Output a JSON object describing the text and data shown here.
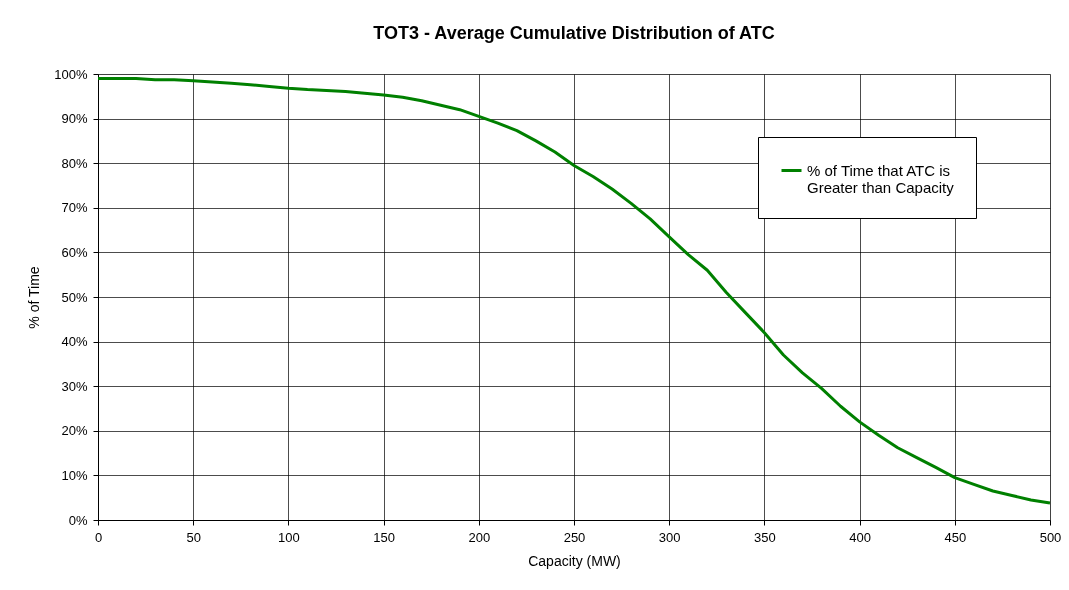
{
  "chart_data": {
    "type": "line",
    "title": "TOT3 - Average Cumulative Distribution of ATC",
    "xlabel": "Capacity (MW)",
    "ylabel": "% of Time",
    "x": [
      0,
      10,
      20,
      30,
      40,
      50,
      60,
      70,
      80,
      90,
      100,
      110,
      120,
      130,
      140,
      150,
      160,
      170,
      180,
      190,
      200,
      210,
      220,
      230,
      240,
      250,
      260,
      270,
      280,
      290,
      300,
      310,
      320,
      330,
      340,
      350,
      360,
      370,
      380,
      390,
      400,
      410,
      420,
      430,
      440,
      450,
      460,
      470,
      480,
      490,
      500
    ],
    "series": [
      {
        "name": "% of Time that ATC is Greater than Capacity",
        "color": "#008000",
        "values": [
          99,
          99,
          99,
          98.7,
          98.7,
          98.5,
          98.2,
          97.9,
          97.6,
          97.2,
          96.8,
          96.5,
          96.3,
          96.1,
          95.7,
          95.3,
          94.8,
          94,
          93,
          92,
          90.5,
          89,
          87.3,
          85,
          82.5,
          79.5,
          77,
          74.2,
          71,
          67.5,
          63.5,
          59.5,
          56,
          51,
          46.5,
          42,
          37,
          33,
          29.5,
          25.5,
          22,
          19,
          16.2,
          14,
          11.8,
          9.5,
          8,
          6.5,
          5.5,
          4.5,
          3.8
        ]
      }
    ],
    "xlim": [
      0,
      500
    ],
    "xticks": [
      0,
      50,
      100,
      150,
      200,
      250,
      300,
      350,
      400,
      450,
      500
    ],
    "ylim": [
      0,
      100
    ],
    "yticks": [
      {
        "value": 0,
        "label": "0%"
      },
      {
        "value": 10,
        "label": "10%"
      },
      {
        "value": 20,
        "label": "20%"
      },
      {
        "value": 30,
        "label": "30%"
      },
      {
        "value": 40,
        "label": "40%"
      },
      {
        "value": 50,
        "label": "50%"
      },
      {
        "value": 60,
        "label": "60%"
      },
      {
        "value": 70,
        "label": "70%"
      },
      {
        "value": 80,
        "label": "80%"
      },
      {
        "value": 90,
        "label": "90%"
      },
      {
        "value": 100,
        "label": "100%"
      }
    ],
    "grid": true,
    "legend": "top right",
    "marker": "none",
    "line_style": "solid"
  }
}
